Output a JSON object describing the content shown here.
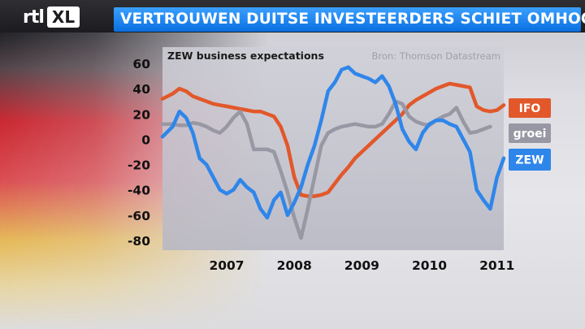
{
  "header": {
    "logo_text": "rtl",
    "logo_badge": "XL",
    "headline": "VERTROUWEN DUITSE INVESTEERDERS SCHIET OMHOOG"
  },
  "colors": {
    "ifo": "#e2582a",
    "groei": "#9898a4",
    "zew": "#2f86ea",
    "headline_bg": "#1a7ff0"
  },
  "chart_data": {
    "type": "line",
    "title": "ZEW business expectations",
    "source": "Bron: Thomson Datastream",
    "xlabel": "",
    "ylabel": "",
    "ylim": [
      -80,
      60
    ],
    "xlim": [
      2006.55,
      2011.6
    ],
    "yticks": [
      "60",
      "40",
      "20",
      "0",
      "-20",
      "-40",
      "-60",
      "-80"
    ],
    "ytick_values": [
      60,
      40,
      20,
      0,
      -20,
      -40,
      -60,
      -80
    ],
    "xticks": [
      "2007",
      "2008",
      "2009",
      "2010",
      "2011"
    ],
    "xtick_values": [
      2007,
      2008,
      2009,
      2010,
      2011
    ],
    "grid": false,
    "legend": "right",
    "series": [
      {
        "name": "IFO",
        "key": "ifo",
        "x": [
          2006.55,
          2006.7,
          2006.8,
          2006.9,
          2007.0,
          2007.1,
          2007.2,
          2007.3,
          2007.4,
          2007.5,
          2007.6,
          2007.7,
          2007.8,
          2007.9,
          2008.0,
          2008.1,
          2008.2,
          2008.3,
          2008.4,
          2008.5,
          2008.6,
          2008.7,
          2008.8,
          2008.9,
          2009.0,
          2009.1,
          2009.2,
          2009.3,
          2009.4,
          2009.5,
          2009.6,
          2009.7,
          2009.8,
          2009.9,
          2010.0,
          2010.1,
          2010.2,
          2010.3,
          2010.4,
          2010.5,
          2010.6,
          2010.7,
          2010.8,
          2010.9,
          2011.0,
          2011.1,
          2011.2,
          2011.3,
          2011.4,
          2011.5,
          2011.6
        ],
        "y": [
          32,
          36,
          40,
          38,
          34,
          32,
          30,
          28,
          27,
          26,
          25,
          24,
          23,
          22,
          22,
          20,
          18,
          10,
          -5,
          -30,
          -44,
          -45,
          -45,
          -44,
          -42,
          -35,
          -28,
          -22,
          -15,
          -10,
          -5,
          0,
          5,
          10,
          15,
          20,
          27,
          31,
          34,
          37,
          40,
          42,
          44,
          43,
          42,
          41,
          26,
          23,
          22,
          23,
          27
        ]
      },
      {
        "name": "groei",
        "key": "groei",
        "x": [
          2006.55,
          2006.7,
          2006.8,
          2006.9,
          2007.0,
          2007.1,
          2007.2,
          2007.3,
          2007.4,
          2007.5,
          2007.6,
          2007.7,
          2007.8,
          2007.9,
          2008.0,
          2008.1,
          2008.2,
          2008.3,
          2008.4,
          2008.5,
          2008.6,
          2008.7,
          2008.8,
          2008.9,
          2009.0,
          2009.1,
          2009.2,
          2009.3,
          2009.4,
          2009.5,
          2009.6,
          2009.7,
          2009.8,
          2009.9,
          2010.0,
          2010.1,
          2010.2,
          2010.3,
          2010.4,
          2010.5,
          2010.6,
          2010.7,
          2010.8,
          2010.9,
          2011.0,
          2011.1,
          2011.2,
          2011.3,
          2011.4
        ],
        "y": [
          12,
          12,
          11,
          11,
          13,
          12,
          10,
          7,
          5,
          10,
          17,
          22,
          12,
          -8,
          -8,
          -8,
          -10,
          -25,
          -42,
          -62,
          -78,
          -55,
          -30,
          -5,
          5,
          8,
          10,
          11,
          12,
          11,
          10,
          10,
          12,
          20,
          30,
          28,
          18,
          14,
          12,
          11,
          15,
          18,
          20,
          25,
          14,
          5,
          6,
          8,
          10
        ]
      },
      {
        "name": "ZEW",
        "key": "zew",
        "x": [
          2006.55,
          2006.7,
          2006.8,
          2006.9,
          2007.0,
          2007.1,
          2007.2,
          2007.3,
          2007.4,
          2007.5,
          2007.6,
          2007.7,
          2007.8,
          2007.9,
          2008.0,
          2008.1,
          2008.2,
          2008.3,
          2008.4,
          2008.5,
          2008.6,
          2008.7,
          2008.8,
          2008.9,
          2009.0,
          2009.1,
          2009.2,
          2009.3,
          2009.4,
          2009.5,
          2009.6,
          2009.7,
          2009.8,
          2009.9,
          2010.0,
          2010.1,
          2010.2,
          2010.3,
          2010.4,
          2010.5,
          2010.6,
          2010.7,
          2010.8,
          2010.9,
          2011.0,
          2011.1,
          2011.2,
          2011.3,
          2011.4,
          2011.5,
          2011.6
        ],
        "y": [
          2,
          10,
          22,
          17,
          5,
          -15,
          -20,
          -30,
          -40,
          -43,
          -40,
          -32,
          -38,
          -42,
          -55,
          -62,
          -48,
          -42,
          -60,
          -50,
          -38,
          -20,
          -5,
          15,
          38,
          45,
          55,
          57,
          52,
          50,
          48,
          45,
          50,
          42,
          28,
          8,
          -2,
          -8,
          5,
          12,
          15,
          15,
          12,
          10,
          0,
          -10,
          -40,
          -48,
          -55,
          -30,
          -15
        ]
      }
    ]
  }
}
